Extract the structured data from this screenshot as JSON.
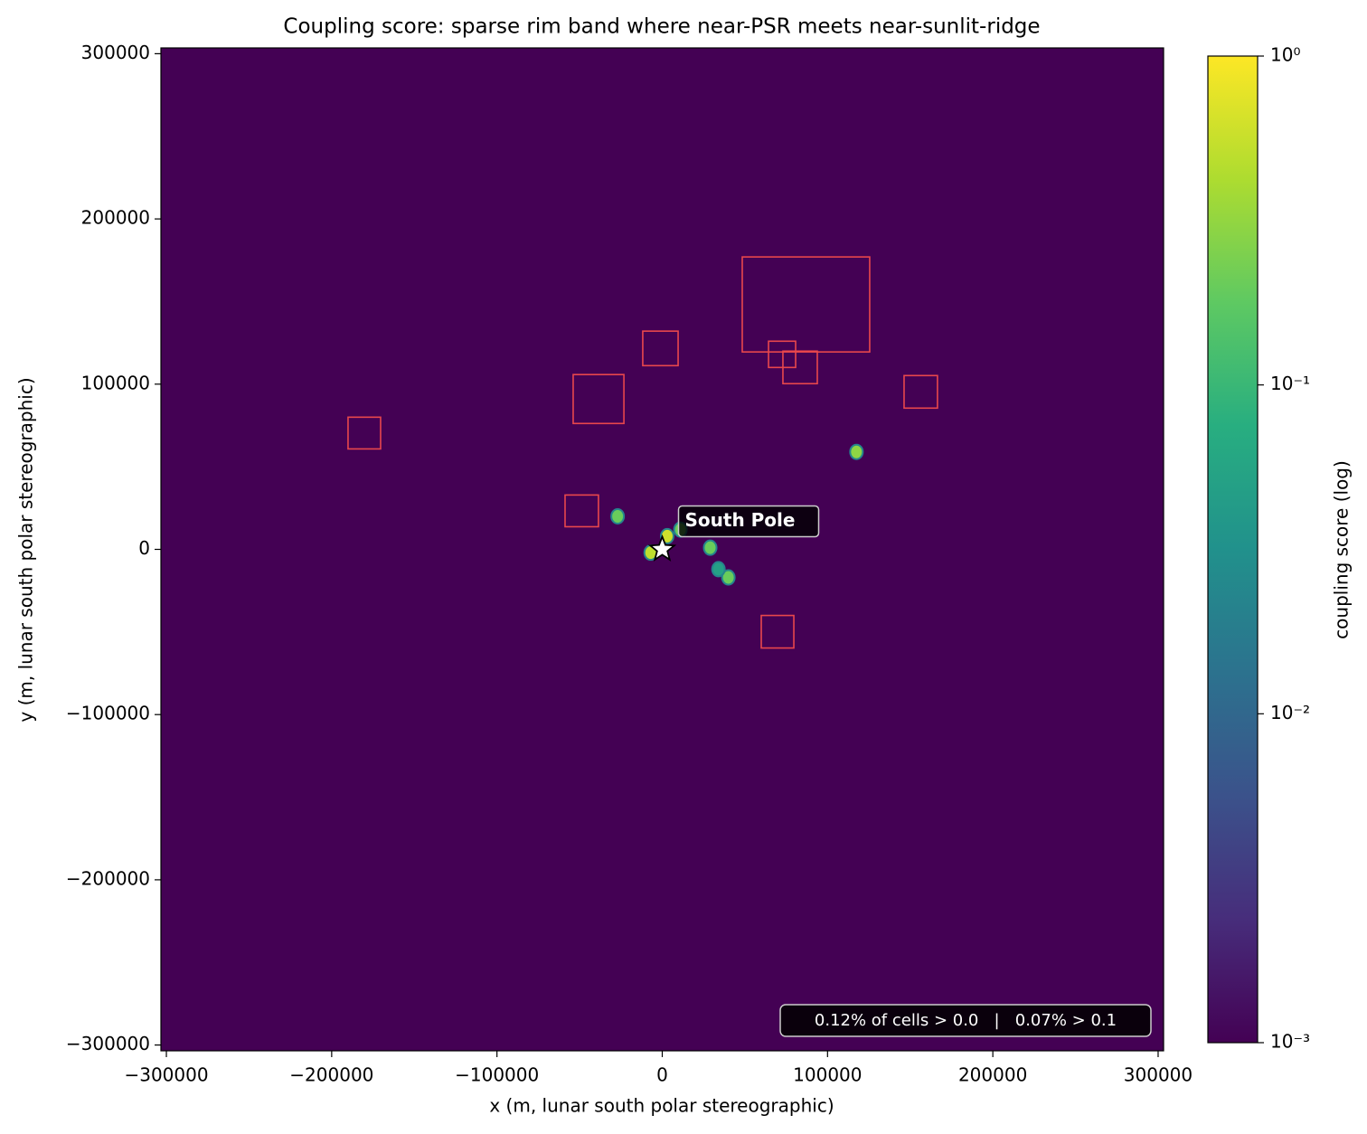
{
  "chart_data": {
    "type": "heatmap",
    "title": "Coupling score: sparse rim band where near-PSR meets near-sunlit-ridge",
    "x_label": "x (m, lunar south polar stereographic)",
    "y_label": "y (m, lunar south polar stereographic)",
    "xlim": [
      -303300,
      303300
    ],
    "ylim": [
      -303500,
      303500
    ],
    "xticks": [
      {
        "value": -300000,
        "label": "−300000"
      },
      {
        "value": -200000,
        "label": "−200000"
      },
      {
        "value": -100000,
        "label": "−100000"
      },
      0,
      100000,
      200000,
      300000
    ],
    "yticks": [
      {
        "value": -300000,
        "label": "−300000"
      },
      {
        "value": -200000,
        "label": "−200000"
      },
      {
        "value": -100000,
        "label": "−100000"
      },
      0,
      100000,
      200000,
      300000
    ],
    "colormap": "viridis",
    "colorbar": {
      "label": "coupling score (log)",
      "log_scale": true,
      "lim": [
        0.001,
        1
      ],
      "ticks": [
        {
          "value": 1,
          "label": "10⁰"
        },
        {
          "value": 0.1,
          "label": "10⁻¹"
        },
        {
          "value": 0.01,
          "label": "10⁻²"
        },
        {
          "value": 0.001,
          "label": "10⁻³"
        }
      ]
    },
    "spots": {
      "x": [
        117500,
        3000,
        -27000,
        -7000,
        29000,
        40000,
        34000,
        11000
      ],
      "y": [
        59000,
        8000,
        20000,
        -2000,
        1000,
        -17000,
        -12000,
        12000
      ],
      "values": [
        0.3,
        0.6,
        0.2,
        0.5,
        0.2,
        0.2,
        0.05,
        0.2
      ]
    },
    "boxes": [
      {
        "x": [
          48400,
          125500
        ],
        "y": [
          119500,
          177000
        ]
      },
      {
        "x": [
          64300,
          80700
        ],
        "y": [
          110100,
          126000
        ]
      },
      {
        "x": [
          73000,
          93800
        ],
        "y": [
          100300,
          120000
        ]
      },
      {
        "x": [
          -11800,
          9600
        ],
        "y": [
          111200,
          132100
        ]
      },
      {
        "x": [
          -53900,
          -23200
        ],
        "y": [
          76200,
          105800
        ]
      },
      {
        "x": [
          146300,
          166500
        ],
        "y": [
          85500,
          105200
        ]
      },
      {
        "x": [
          -190100,
          -170400
        ],
        "y": [
          60800,
          80000
        ]
      },
      {
        "x": [
          -58800,
          -38600
        ],
        "y": [
          13700,
          32900
        ]
      },
      {
        "x": [
          59900,
          79600
        ],
        "y": [
          -59700,
          -40000
        ]
      }
    ],
    "box_color": "#e8474c",
    "marker": {
      "x": 0,
      "y": 0,
      "label": "South Pole"
    },
    "stats_note": "0.12% of cells > 0.0   |   0.07% > 0.1"
  }
}
